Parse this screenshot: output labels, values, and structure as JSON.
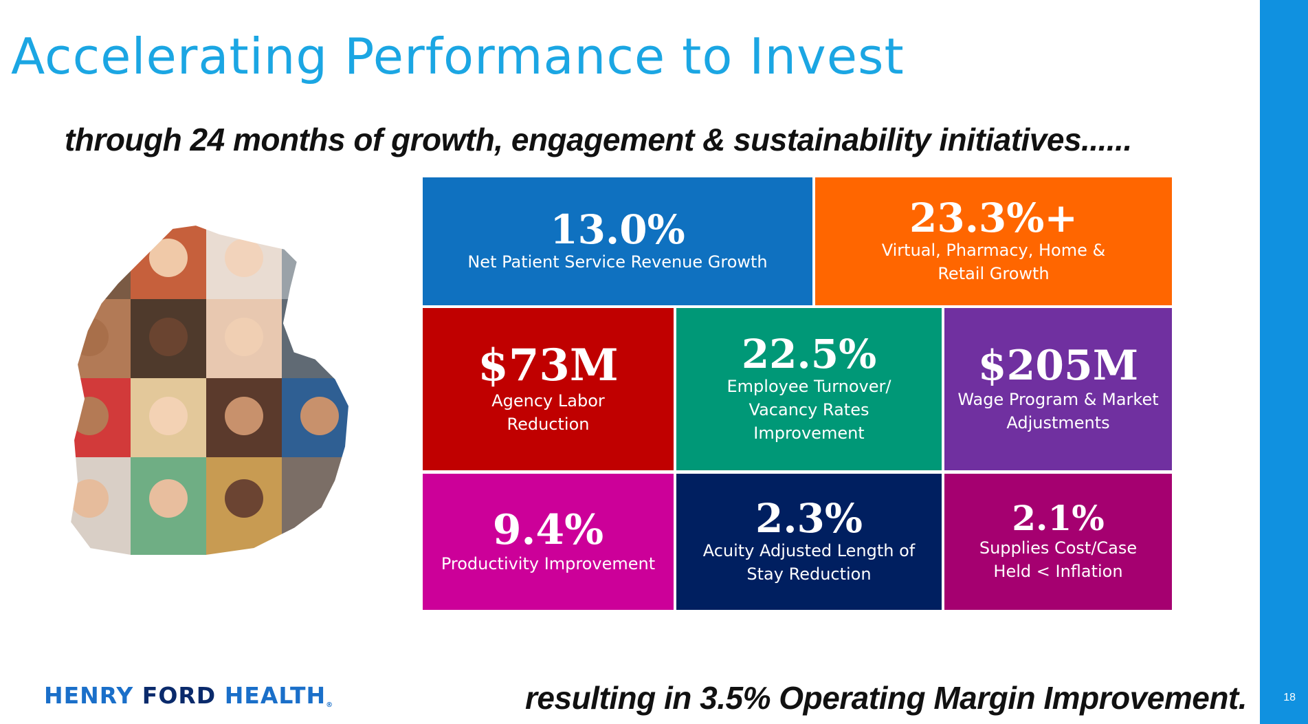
{
  "slide": {
    "title": "Accelerating Performance to Invest",
    "subtitle": "through 24 months of growth, engagement & sustainability initiatives......",
    "footer": "resulting in 3.5% Operating Margin Improvement.",
    "page_number": "18"
  },
  "logo": {
    "word1": "HENRY",
    "word2": "FORD",
    "word3": "HEALTH",
    "mark": "®"
  },
  "tiles": [
    {
      "value": "13.0%",
      "label_lines": [
        "Net Patient Service Revenue Growth"
      ],
      "color": "#0f71c0"
    },
    {
      "value": "23.3%+",
      "label_lines": [
        "Virtual, Pharmacy, Home &",
        "Retail Growth"
      ],
      "color": "#ff6600"
    },
    {
      "value": "$73M",
      "label_lines": [
        "Agency Labor",
        "Reduction"
      ],
      "color": "#c00000"
    },
    {
      "value": "22.5%",
      "label_lines": [
        "Employee Turnover/",
        "Vacancy Rates",
        "Improvement"
      ],
      "color": "#009877"
    },
    {
      "value": "$205M",
      "label_lines": [
        "Wage Program & Market",
        "Adjustments"
      ],
      "color": "#7030a0"
    },
    {
      "value": "9.4%",
      "label_lines": [
        "Productivity Improvement"
      ],
      "color": "#cc0099"
    },
    {
      "value": "2.3%",
      "label_lines": [
        "Acuity Adjusted Length of",
        "Stay Reduction"
      ],
      "color": "#001f60"
    },
    {
      "value": "2.1%",
      "label_lines": [
        "Supplies Cost/Case",
        "Held < Inflation"
      ],
      "color": "#a50070"
    }
  ],
  "colors": {
    "accent": "#1ba6e3",
    "side_bar": "#1091e0"
  }
}
